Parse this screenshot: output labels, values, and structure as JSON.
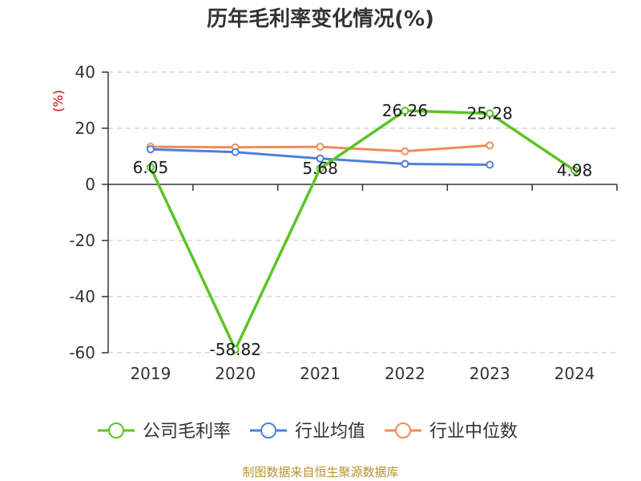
{
  "chart_data": {
    "type": "line",
    "title": "历年毛利率变化情况(%)",
    "ylabel": "(%)",
    "categories": [
      "2019",
      "2020",
      "2021",
      "2022",
      "2023",
      "2024"
    ],
    "ylim": [
      -60,
      40
    ],
    "yticks": [
      40,
      20,
      0,
      -20,
      -40,
      -60
    ],
    "grid": true,
    "legend_position": "bottom",
    "series": [
      {
        "name": "公司毛利率",
        "color": "#5bc424",
        "values": [
          6.05,
          -58.82,
          5.68,
          26.26,
          25.28,
          4.98
        ],
        "labels": [
          "6.05",
          "-58.82",
          "5.68",
          "26.26",
          "25.28",
          "4.98"
        ]
      },
      {
        "name": "行业均值",
        "color": "#4e7fdb",
        "values": [
          12.5,
          11.5,
          9.2,
          7.3,
          7.0,
          null
        ]
      },
      {
        "name": "行业中位数",
        "color": "#f08c5a",
        "values": [
          13.4,
          13.2,
          13.4,
          11.8,
          13.9,
          null
        ]
      }
    ]
  },
  "footer": {
    "source": "制图数据来自恒生聚源数据库"
  },
  "colors": {
    "axis": "#333333",
    "grid": "#cccccc",
    "ylabel": "#cc0000",
    "source": "#b8922e"
  }
}
